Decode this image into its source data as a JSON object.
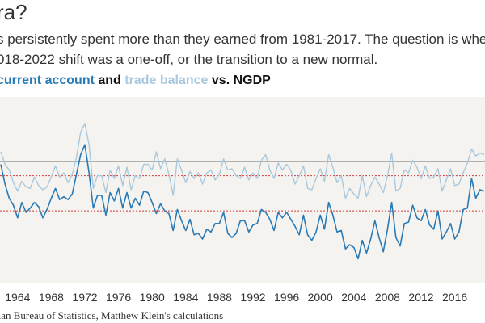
{
  "heading": {
    "title": "ra?",
    "subtitle_line1": "s persistently spent more than they earned from 1981-2017. The question is wheth",
    "subtitle_line2": "018-2022 shift was a one-off, or the transition to a new normal."
  },
  "legend": {
    "current_account": "current account",
    "joiner": "and",
    "trade_balance": "trade balance",
    "suffix": "vs. NGDP"
  },
  "source": "lian Bureau of Statistics, Matthew Klein's calculations",
  "colors": {
    "plot_background": "#f5f3ef",
    "current_account": "#2a7ab5",
    "trade_balance": "#a9c8dd",
    "reference_dotted": "#d43a3a",
    "zero_line": "#888888"
  },
  "chart_data": {
    "type": "line",
    "x_range": [
      1961.9,
      2019.6
    ],
    "y_range": [
      -8.6,
      4.6
    ],
    "x_ticks": [
      "1964",
      "1968",
      "1972",
      "1976",
      "1980",
      "1984",
      "1988",
      "1992",
      "1996",
      "2000",
      "2004",
      "2008",
      "2012",
      "2016"
    ],
    "reference_lines": [
      {
        "y": 0,
        "style": "solid"
      },
      {
        "y": -1.0,
        "style": "dotted"
      },
      {
        "y": -3.5,
        "style": "dotted"
      }
    ],
    "grid": false,
    "series": [
      {
        "name": "trade balance",
        "x": [
          1962.0,
          1962.5,
          1963.0,
          1963.5,
          1964.0,
          1964.5,
          1965.0,
          1965.5,
          1966.0,
          1966.5,
          1967.0,
          1967.5,
          1968.0,
          1968.5,
          1969.0,
          1969.5,
          1970.0,
          1970.5,
          1971.0,
          1971.5,
          1972.0,
          1972.5,
          1973.0,
          1973.5,
          1974.0,
          1974.5,
          1975.0,
          1975.5,
          1976.0,
          1976.5,
          1977.0,
          1977.5,
          1978.0,
          1978.5,
          1979.0,
          1979.5,
          1980.0,
          1980.5,
          1981.0,
          1981.5,
          1982.0,
          1982.5,
          1983.0,
          1983.5,
          1984.0,
          1984.5,
          1985.0,
          1985.5,
          1986.0,
          1986.5,
          1987.0,
          1987.5,
          1988.0,
          1988.5,
          1989.0,
          1989.5,
          1990.0,
          1990.5,
          1991.0,
          1991.5,
          1992.0,
          1992.5,
          1993.0,
          1993.5,
          1994.0,
          1994.5,
          1995.0,
          1995.5,
          1996.0,
          1996.5,
          1997.0,
          1997.5,
          1998.0,
          1998.5,
          1999.0,
          1999.5,
          2000.0,
          2000.5,
          2001.0,
          2001.5,
          2002.0,
          2002.5,
          2003.0,
          2003.5,
          2004.0,
          2004.5,
          2005.0,
          2005.5,
          2006.0,
          2006.5,
          2007.0,
          2007.5,
          2008.0,
          2008.5,
          2009.0,
          2009.5,
          2010.0,
          2010.5,
          2011.0,
          2011.5,
          2012.0,
          2012.5,
          2013.0,
          2013.5,
          2014.0,
          2014.5,
          2015.0,
          2015.5,
          2016.0,
          2016.5,
          2017.0,
          2017.5,
          2018.0,
          2018.5,
          2019.0,
          2019.5
        ],
        "values": [
          0.7,
          -0.2,
          -0.6,
          -1.5,
          -2.1,
          -1.4,
          -1.8,
          -1.9,
          -1.1,
          -1.7,
          -2.0,
          -1.8,
          -1.1,
          -0.3,
          -1.1,
          -0.8,
          -1.5,
          -0.9,
          0.3,
          2.1,
          2.7,
          1.2,
          -1.9,
          -1.0,
          -1.0,
          -2.2,
          -0.6,
          -1.2,
          -0.3,
          -1.7,
          -0.4,
          -2.0,
          -1.0,
          -1.2,
          -0.2,
          -0.2,
          -0.6,
          0.7,
          -0.5,
          0.2,
          -0.9,
          -2.4,
          0.2,
          -0.6,
          -1.5,
          -0.7,
          -1.2,
          -0.8,
          -1.6,
          -0.8,
          -0.6,
          -1.3,
          -0.9,
          0.2,
          -0.6,
          -0.5,
          -1.0,
          -1.2,
          -0.4,
          -1.3,
          -0.8,
          -1.2,
          0.1,
          0.5,
          -0.6,
          -1.2,
          -0.1,
          -0.6,
          -0.2,
          -0.6,
          -1.6,
          -1.0,
          -0.3,
          -1.9,
          -2.0,
          -1.2,
          -0.5,
          -1.4,
          0.5,
          -0.4,
          -1.5,
          -1.0,
          -2.6,
          -1.9,
          -2.3,
          -2.6,
          -1.0,
          -2.5,
          -1.7,
          -1.1,
          -1.6,
          -2.2,
          -1.0,
          0.6,
          -2.1,
          -1.9,
          -0.6,
          -0.8,
          0.1,
          -0.4,
          -1.2,
          -0.3,
          -1.2,
          -1.1,
          -0.5,
          -2.1,
          -1.3,
          -0.5,
          -1.7,
          -1.6,
          -0.8,
          -0.1,
          0.9,
          0.4,
          0.6,
          0.5
        ]
      },
      {
        "name": "current account",
        "x": [
          1962.0,
          1962.5,
          1963.0,
          1963.5,
          1964.0,
          1964.5,
          1965.0,
          1965.5,
          1966.0,
          1966.5,
          1967.0,
          1967.5,
          1968.0,
          1968.5,
          1969.0,
          1969.5,
          1970.0,
          1970.5,
          1971.0,
          1971.5,
          1972.0,
          1972.5,
          1973.0,
          1973.5,
          1974.0,
          1974.5,
          1975.0,
          1975.5,
          1976.0,
          1976.5,
          1977.0,
          1977.5,
          1978.0,
          1978.5,
          1979.0,
          1979.5,
          1980.0,
          1980.5,
          1981.0,
          1981.5,
          1982.0,
          1982.5,
          1983.0,
          1983.5,
          1984.0,
          1984.5,
          1985.0,
          1985.5,
          1986.0,
          1986.5,
          1987.0,
          1987.5,
          1988.0,
          1988.5,
          1989.0,
          1989.5,
          1990.0,
          1990.5,
          1991.0,
          1991.5,
          1992.0,
          1992.5,
          1993.0,
          1993.5,
          1994.0,
          1994.5,
          1995.0,
          1995.5,
          1996.0,
          1996.5,
          1997.0,
          1997.5,
          1998.0,
          1998.5,
          1999.0,
          1999.5,
          2000.0,
          2000.5,
          2001.0,
          2001.5,
          2002.0,
          2002.5,
          2003.0,
          2003.5,
          2004.0,
          2004.5,
          2005.0,
          2005.5,
          2006.0,
          2006.5,
          2007.0,
          2007.5,
          2008.0,
          2008.5,
          2009.0,
          2009.5,
          2010.0,
          2010.5,
          2011.0,
          2011.5,
          2012.0,
          2012.5,
          2013.0,
          2013.5,
          2014.0,
          2014.5,
          2015.0,
          2015.5,
          2016.0,
          2016.5,
          2017.0,
          2017.5,
          2018.0,
          2018.5,
          2019.0,
          2019.5
        ],
        "values": [
          -0.2,
          -1.6,
          -2.6,
          -3.1,
          -4.0,
          -2.9,
          -3.6,
          -3.3,
          -2.9,
          -3.2,
          -4.0,
          -3.4,
          -2.6,
          -1.9,
          -2.7,
          -2.5,
          -2.7,
          -2.3,
          -0.9,
          0.5,
          1.2,
          -0.8,
          -3.3,
          -2.4,
          -2.4,
          -3.8,
          -2.2,
          -2.8,
          -1.9,
          -3.3,
          -2.2,
          -3.3,
          -2.6,
          -3.1,
          -2.1,
          -2.2,
          -2.9,
          -3.7,
          -3.0,
          -3.5,
          -3.7,
          -4.9,
          -3.4,
          -4.2,
          -4.9,
          -4.1,
          -5.2,
          -5.1,
          -5.5,
          -4.8,
          -5.0,
          -4.4,
          -4.4,
          -3.6,
          -5.1,
          -5.4,
          -5.1,
          -4.2,
          -4.2,
          -5.0,
          -4.5,
          -4.4,
          -3.4,
          -3.6,
          -4.1,
          -4.9,
          -3.6,
          -4.0,
          -3.6,
          -4.1,
          -4.6,
          -5.2,
          -3.8,
          -5.2,
          -5.6,
          -5.0,
          -3.8,
          -4.8,
          -2.9,
          -3.8,
          -5.0,
          -4.9,
          -6.2,
          -5.9,
          -6.1,
          -6.9,
          -5.6,
          -6.5,
          -5.5,
          -4.2,
          -5.4,
          -6.4,
          -4.8,
          -2.9,
          -5.4,
          -6.0,
          -4.4,
          -4.3,
          -3.1,
          -4.0,
          -4.2,
          -3.4,
          -4.5,
          -4.8,
          -3.5,
          -5.5,
          -5.0,
          -4.4,
          -5.5,
          -5.0,
          -3.4,
          -3.3,
          -1.2,
          -2.6,
          -2.0,
          -2.1
        ]
      }
    ]
  }
}
